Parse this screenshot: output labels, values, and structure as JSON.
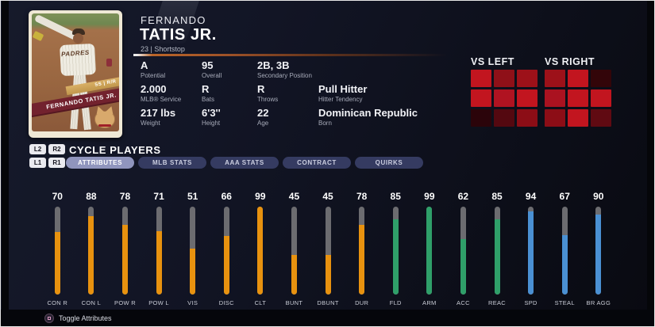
{
  "player": {
    "first_name": "FERNANDO",
    "last_name": "TATIS JR.",
    "meta": "23 | Shortstop",
    "card": {
      "team_text": "PADRES",
      "banner_tag": "SS | R/R",
      "banner_name": "FERNANDO TATIS JR."
    },
    "stats": [
      {
        "value": "A",
        "label": "Potential"
      },
      {
        "value": "95",
        "label": "Overall"
      },
      {
        "value": "2B, 3B",
        "label": "Secondary Position"
      },
      {
        "value": "2.000",
        "label": "MLB® Service"
      },
      {
        "value": "R",
        "label": "Bats"
      },
      {
        "value": "R",
        "label": "Throws"
      },
      {
        "value": "Pull Hitter",
        "label": "Hitter Tendency"
      },
      {
        "value": "217 lbs",
        "label": "Weight"
      },
      {
        "value": "6'3''",
        "label": "Height"
      },
      {
        "value": "22",
        "label": "Age"
      },
      {
        "value": "Dominican Republic",
        "label": "Born"
      }
    ]
  },
  "heatmaps": {
    "vs_left": {
      "title": "VS LEFT",
      "cells": [
        [
          "#c2151f",
          "#8f1018",
          "#9d1119"
        ],
        [
          "#c2151f",
          "#b01321",
          "#c2151f"
        ],
        [
          "#2b040a",
          "#540810",
          "#8c0d16"
        ]
      ]
    },
    "vs_right": {
      "title": "VS RIGHT",
      "cells": [
        [
          "#9d1119",
          "#c2151f",
          "#330509"
        ],
        [
          "#aa1220",
          "#c2151f",
          "#c2151f"
        ],
        [
          "#8c0d16",
          "#c2151f",
          "#600a12"
        ]
      ]
    }
  },
  "controls": {
    "cycle_buttons": [
      "L2",
      "R2"
    ],
    "cycle_label": "CYCLE PLAYERS",
    "tab_shoulder_buttons": [
      "L1",
      "R1"
    ],
    "toggle_label": "Toggle Attributes",
    "toggle_icon": "square-button"
  },
  "tabs": [
    {
      "label": "ATTRIBUTES",
      "selected": true
    },
    {
      "label": "MLB STATS",
      "selected": false
    },
    {
      "label": "AAA STATS",
      "selected": false
    },
    {
      "label": "CONTRACT",
      "selected": false
    },
    {
      "label": "QUIRKS",
      "selected": false
    }
  ],
  "attributes": [
    {
      "label": "CON R",
      "value": 70,
      "color": "orange"
    },
    {
      "label": "CON L",
      "value": 88,
      "color": "orange"
    },
    {
      "label": "POW R",
      "value": 78,
      "color": "orange"
    },
    {
      "label": "POW L",
      "value": 71,
      "color": "orange"
    },
    {
      "label": "VIS",
      "value": 51,
      "color": "orange"
    },
    {
      "label": "DISC",
      "value": 66,
      "color": "orange"
    },
    {
      "label": "CLT",
      "value": 99,
      "color": "orange"
    },
    {
      "label": "BUNT",
      "value": 45,
      "color": "orange"
    },
    {
      "label": "DBUNT",
      "value": 45,
      "color": "orange"
    },
    {
      "label": "DUR",
      "value": 78,
      "color": "orange"
    },
    {
      "label": "FLD",
      "value": 85,
      "color": "green"
    },
    {
      "label": "ARM",
      "value": 99,
      "color": "green"
    },
    {
      "label": "ACC",
      "value": 62,
      "color": "green"
    },
    {
      "label": "REAC",
      "value": 85,
      "color": "green"
    },
    {
      "label": "SPD",
      "value": 94,
      "color": "blue"
    },
    {
      "label": "STEAL",
      "value": 67,
      "color": "blue"
    },
    {
      "label": "BR AGG",
      "value": 90,
      "color": "blue"
    }
  ],
  "chart_data": {
    "type": "bar",
    "title": "Player Attributes",
    "categories": [
      "CON R",
      "CON L",
      "POW R",
      "POW L",
      "VIS",
      "DISC",
      "CLT",
      "BUNT",
      "DBUNT",
      "DUR",
      "FLD",
      "ARM",
      "ACC",
      "REAC",
      "SPD",
      "STEAL",
      "BR AGG"
    ],
    "values": [
      70,
      88,
      78,
      71,
      51,
      66,
      99,
      45,
      45,
      78,
      85,
      99,
      62,
      85,
      94,
      67,
      90
    ],
    "ylim": [
      0,
      99
    ]
  },
  "colors": {
    "orange": "#e8920f",
    "green": "#2f9f69",
    "blue": "#4a90d3",
    "track": "#6c6c70",
    "tab_selected": "#9095bd",
    "tab_unselected": "#353b61",
    "ribbon_maroon": "#72222e",
    "ribbon_gold": "#d9b066"
  }
}
